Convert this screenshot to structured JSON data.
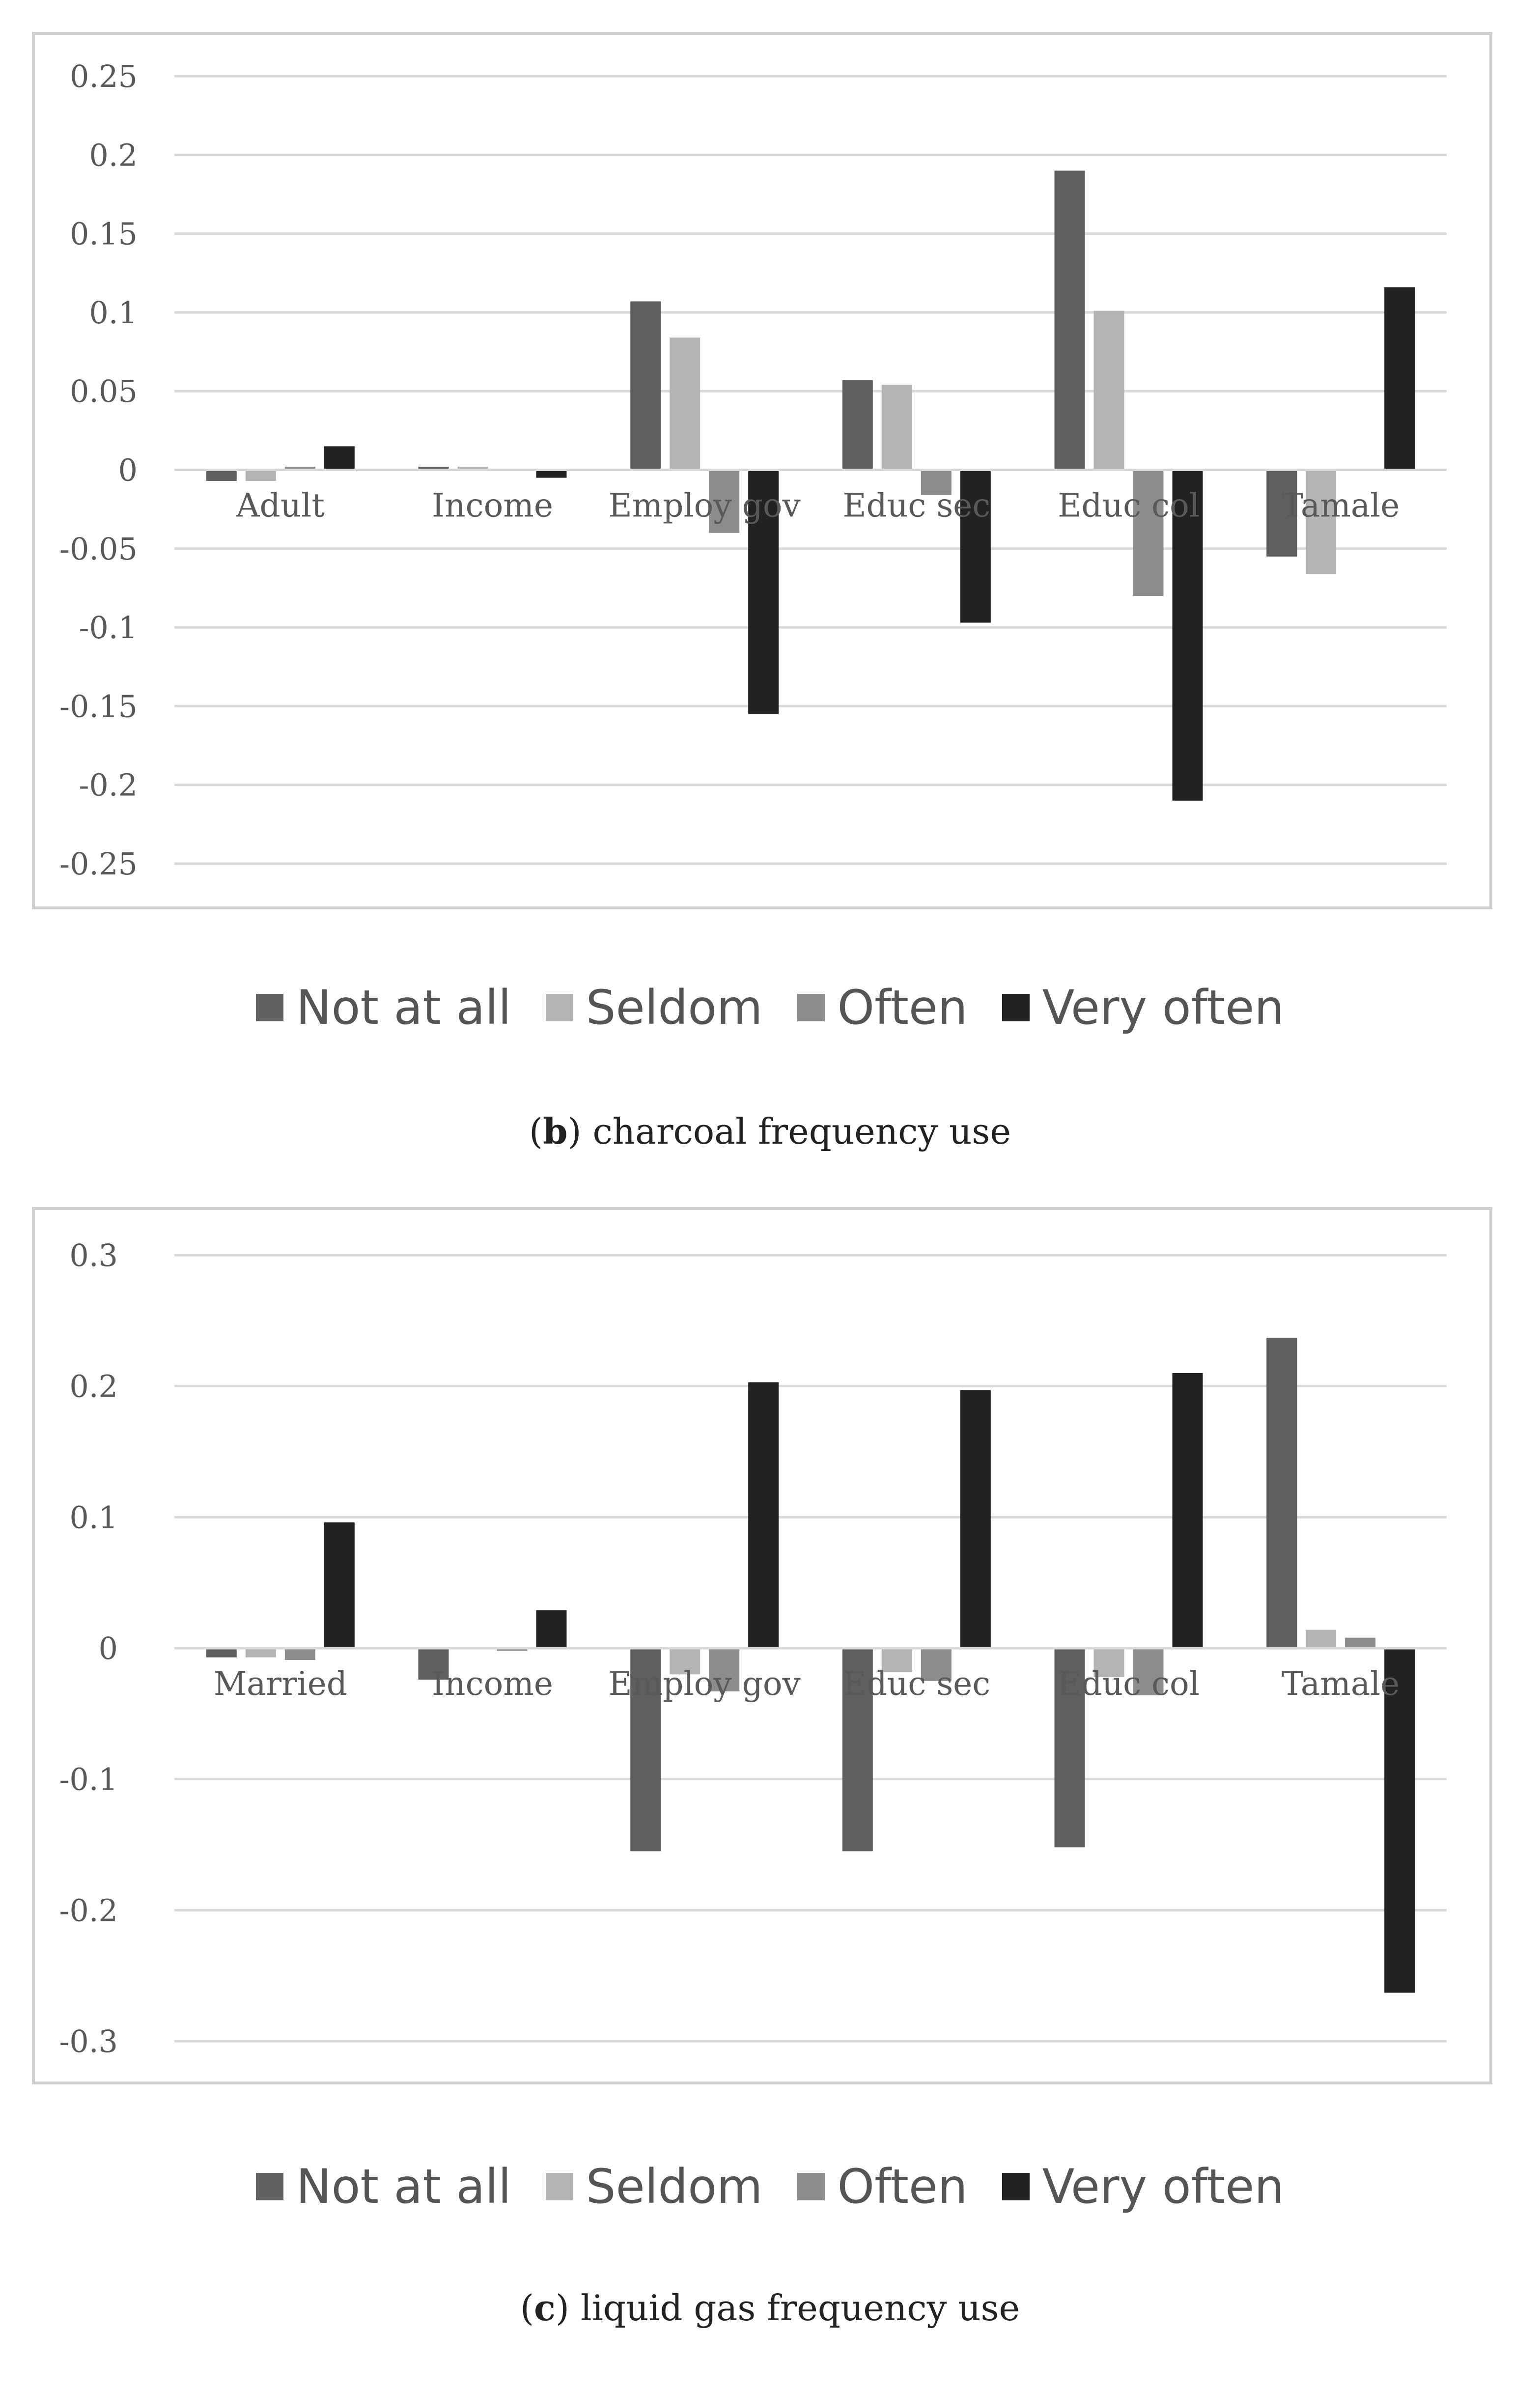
{
  "colors": {
    "not_at_all": "#5f5f5f",
    "seldom": "#b4b4b4",
    "often": "#8c8c8c",
    "very_often": "#222222",
    "grid": "#d9d9d9",
    "frame": "#d0d0d0"
  },
  "chart_data": [
    {
      "type": "bar",
      "caption_letter": "b",
      "caption_text": ") charcoal frequency use",
      "categories": [
        "Adult",
        "Income",
        "Employ gov",
        "Educ sec",
        "Educ col",
        "Tamale"
      ],
      "series": [
        {
          "name": "Not at all",
          "color_key": "not_at_all",
          "values": [
            -0.007,
            0.002,
            0.107,
            0.057,
            0.19,
            -0.055
          ]
        },
        {
          "name": "Seldom",
          "color_key": "seldom",
          "values": [
            -0.007,
            0.002,
            0.084,
            0.054,
            0.101,
            -0.066
          ]
        },
        {
          "name": "Often",
          "color_key": "often",
          "values": [
            0.002,
            0.0,
            -0.04,
            -0.016,
            -0.08,
            0.0
          ]
        },
        {
          "name": "Very often",
          "color_key": "very_often",
          "values": [
            0.015,
            -0.005,
            -0.155,
            -0.097,
            -0.21,
            0.116
          ]
        }
      ],
      "ylim": [
        -0.25,
        0.25
      ],
      "yticks": [
        0.25,
        0.2,
        0.15,
        0.1,
        0.05,
        0,
        -0.05,
        -0.1,
        -0.15,
        -0.2,
        -0.25
      ],
      "ytick_labels": [
        "0.25",
        "0.2",
        "0.15",
        "0.1",
        "0.05",
        "0",
        "-0.05",
        "-0.1",
        "-0.15",
        "-0.2",
        "-0.25"
      ],
      "legend_position": "bottom",
      "grid": true
    },
    {
      "type": "bar",
      "caption_letter": "c",
      "caption_text": ") liquid gas frequency use",
      "categories": [
        "Married",
        "Income",
        "Employ gov",
        "Educ sec",
        "Educ col",
        "Tamale"
      ],
      "series": [
        {
          "name": "Not at all",
          "color_key": "not_at_all",
          "values": [
            -0.007,
            -0.024,
            -0.155,
            -0.155,
            -0.152,
            0.237
          ]
        },
        {
          "name": "Seldom",
          "color_key": "seldom",
          "values": [
            -0.007,
            0.0,
            -0.02,
            -0.018,
            -0.022,
            0.014
          ]
        },
        {
          "name": "Often",
          "color_key": "often",
          "values": [
            -0.009,
            -0.002,
            -0.033,
            -0.025,
            -0.036,
            0.008
          ]
        },
        {
          "name": "Very often",
          "color_key": "very_often",
          "values": [
            0.096,
            0.029,
            0.203,
            0.197,
            0.21,
            -0.263
          ]
        }
      ],
      "ylim": [
        -0.3,
        0.3
      ],
      "yticks": [
        0.3,
        0.2,
        0.1,
        0,
        -0.1,
        -0.2,
        -0.3
      ],
      "ytick_labels": [
        "0.3",
        "0.2",
        "0.1",
        "0",
        "-0.1",
        "-0.2",
        "-0.3"
      ],
      "legend_position": "bottom",
      "grid": true
    }
  ]
}
